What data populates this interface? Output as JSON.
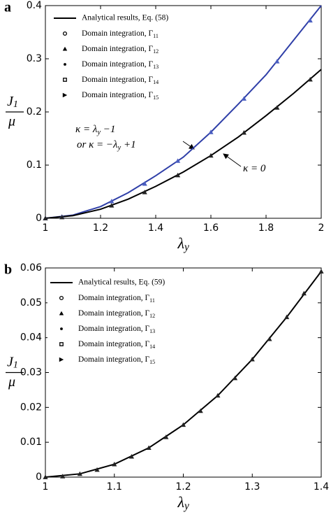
{
  "chart_data": [
    {
      "type": "line",
      "label": "a",
      "xlim": [
        1,
        2
      ],
      "xticks": [
        1,
        1.2,
        1.4,
        1.6,
        1.8,
        2
      ],
      "ylim": [
        0,
        0.4
      ],
      "yticks": [
        0,
        0.1,
        0.2,
        0.3,
        0.4
      ],
      "xlabel": {
        "text": "λ",
        "sub": "y"
      },
      "ylabel": {
        "text": "J",
        "sub": "1",
        "den": "μ"
      },
      "series": [
        {
          "name": "Analytical results, Eq. (58)",
          "color": "#2f3fa8",
          "x": [
            1,
            1.1,
            1.2,
            1.3,
            1.4,
            1.5,
            1.6,
            1.7,
            1.8,
            1.9,
            2
          ],
          "values": [
            0,
            0.006,
            0.022,
            0.048,
            0.08,
            0.115,
            0.162,
            0.215,
            0.27,
            0.335,
            0.4
          ]
        },
        {
          "color": "#000000",
          "x": [
            1,
            1.1,
            1.2,
            1.3,
            1.4,
            1.5,
            1.6,
            1.7,
            1.8,
            1.9,
            2
          ],
          "values": [
            0,
            0.005,
            0.017,
            0.036,
            0.06,
            0.087,
            0.118,
            0.153,
            0.193,
            0.235,
            0.28
          ]
        }
      ],
      "legend_markers": [
        {
          "text": "Domain integration, Γ",
          "sub": "11",
          "symbol": "circle"
        },
        {
          "text": "Domain integration, Γ",
          "sub": "12",
          "symbol": "triangle"
        },
        {
          "text": "Domain integration, Γ",
          "sub": "13",
          "symbol": "diamond"
        },
        {
          "text": "Domain integration, Γ",
          "sub": "14",
          "symbol": "square"
        },
        {
          "text": "Domain integration, Γ",
          "sub": "15",
          "symbol": "right"
        }
      ],
      "points": [
        {
          "color": "#4a5ec0",
          "x": [
            1,
            1.06,
            1.24,
            1.36,
            1.48,
            1.6,
            1.72,
            1.84,
            1.96
          ],
          "values": [
            0,
            0.003,
            0.032,
            0.065,
            0.108,
            0.162,
            0.225,
            0.295,
            0.372
          ]
        },
        {
          "color": "#222222",
          "x": [
            1,
            1.06,
            1.24,
            1.36,
            1.48,
            1.6,
            1.72,
            1.84,
            1.96
          ],
          "values": [
            0,
            0.002,
            0.024,
            0.049,
            0.081,
            0.118,
            0.161,
            0.208,
            0.261
          ]
        }
      ],
      "annotations": [
        {
          "text": "κ = λ",
          "sub": "y",
          "rest": " −1"
        },
        {
          "text": "or  κ = −λ",
          "sub": "y",
          "rest": " +1"
        },
        {
          "text": "κ = 0"
        }
      ]
    },
    {
      "type": "line",
      "label": "b",
      "xlim": [
        1,
        1.4
      ],
      "xticks": [
        1,
        1.1,
        1.2,
        1.3,
        1.4
      ],
      "ylim": [
        0,
        0.06
      ],
      "yticks": [
        0,
        0.01,
        0.02,
        0.03,
        0.04,
        0.05,
        0.06
      ],
      "xlabel": {
        "text": "λ",
        "sub": "y"
      },
      "ylabel": {
        "text": "J",
        "sub": "1",
        "den": "μ"
      },
      "series": [
        {
          "name": "Analytical results, Eq. (59)",
          "color": "#000000",
          "x": [
            1,
            1.05,
            1.1,
            1.15,
            1.2,
            1.25,
            1.3,
            1.35,
            1.4
          ],
          "values": [
            0,
            0.00094,
            0.0037,
            0.0084,
            0.015,
            0.0234,
            0.0338,
            0.0459,
            0.059
          ]
        }
      ],
      "legend_markers": [
        {
          "text": "Domain integration, Γ",
          "sub": "11",
          "symbol": "circle"
        },
        {
          "text": "Domain integration, Γ",
          "sub": "12",
          "symbol": "triangle"
        },
        {
          "text": "Domain integration, Γ",
          "sub": "13",
          "symbol": "diamond"
        },
        {
          "text": "Domain integration, Γ",
          "sub": "14",
          "symbol": "square"
        },
        {
          "text": "Domain integration, Γ",
          "sub": "15",
          "symbol": "right"
        }
      ],
      "points": [
        {
          "color": "#222222",
          "x": [
            1,
            1.025,
            1.05,
            1.075,
            1.1,
            1.125,
            1.15,
            1.175,
            1.2,
            1.225,
            1.25,
            1.275,
            1.3,
            1.325,
            1.35,
            1.375,
            1.4
          ],
          "values": [
            0,
            0.00023,
            0.00094,
            0.0021,
            0.0037,
            0.0059,
            0.0084,
            0.0115,
            0.015,
            0.019,
            0.0234,
            0.0284,
            0.0338,
            0.0396,
            0.0459,
            0.0527,
            0.059
          ]
        }
      ]
    }
  ]
}
